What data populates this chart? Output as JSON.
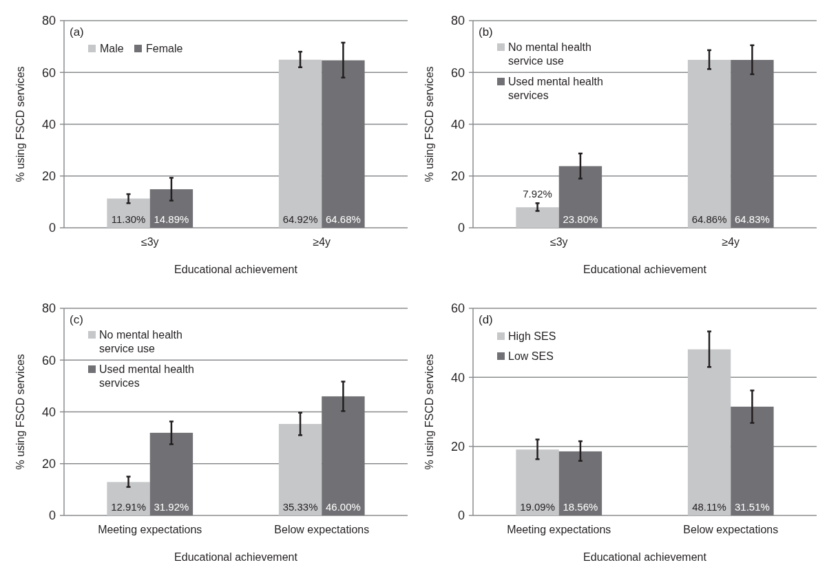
{
  "chart_data": [
    {
      "type": "bar",
      "title": "(a)",
      "xlabel": "Educational achievement",
      "ylabel": "% using FSCD services",
      "categories": [
        "≤3y",
        "≥4y"
      ],
      "ylim": [
        0,
        80
      ],
      "yticks": [
        0,
        20,
        40,
        60,
        80
      ],
      "grid": "y",
      "legend": "top left",
      "series": [
        {
          "name": "Male",
          "color": "#c6c7c9",
          "values": [
            11.3,
            64.92
          ],
          "value_labels": [
            "11.30%",
            "64.92%"
          ],
          "errors": [
            [
              9.5,
              13
            ],
            [
              62,
              68
            ]
          ]
        },
        {
          "name": "Female",
          "color": "#717175",
          "values": [
            14.89,
            64.68
          ],
          "value_labels": [
            "14.89%",
            "64.68%"
          ],
          "errors": [
            [
              10.5,
              19.3
            ],
            [
              58,
              71.5
            ]
          ]
        }
      ]
    },
    {
      "type": "bar",
      "title": "(b)",
      "xlabel": "Educational achievement",
      "ylabel": "% using FSCD services",
      "categories": [
        "≤3y",
        "≥4y"
      ],
      "ylim": [
        0,
        80
      ],
      "yticks": [
        0,
        20,
        40,
        60,
        80
      ],
      "grid": "y",
      "legend": "top left",
      "series": [
        {
          "name": "No mental health service use",
          "color": "#c6c7c9",
          "values": [
            7.92,
            64.86
          ],
          "value_labels": [
            "7.92%",
            "64.86%"
          ],
          "errors": [
            [
              6.5,
              9.5
            ],
            [
              61.3,
              68.6
            ]
          ]
        },
        {
          "name": "Used mental health services",
          "color": "#717175",
          "values": [
            23.8,
            64.83
          ],
          "value_labels": [
            "23.80%",
            "64.83%"
          ],
          "errors": [
            [
              19,
              28.7
            ],
            [
              59.3,
              70.5
            ]
          ]
        }
      ]
    },
    {
      "type": "bar",
      "title": "(c)",
      "xlabel": "Educational achievement",
      "ylabel": "% using FSCD services",
      "categories": [
        "Meeting expectations",
        "Below expectations"
      ],
      "ylim": [
        0,
        80
      ],
      "yticks": [
        0,
        20,
        40,
        60,
        80
      ],
      "grid": "y",
      "legend": "top left",
      "series": [
        {
          "name": "No mental health service use",
          "color": "#c6c7c9",
          "values": [
            12.91,
            35.33
          ],
          "value_labels": [
            "12.91%",
            "35.33%"
          ],
          "errors": [
            [
              11,
              15
            ],
            [
              31,
              39.7
            ]
          ]
        },
        {
          "name": "Used mental health services",
          "color": "#717175",
          "values": [
            31.92,
            46.0
          ],
          "value_labels": [
            "31.92%",
            "46.00%"
          ],
          "errors": [
            [
              27.5,
              36.3
            ],
            [
              40.3,
              51.7
            ]
          ]
        }
      ]
    },
    {
      "type": "bar",
      "title": "(d)",
      "xlabel": "Educational achievement",
      "ylabel": "% using FSCD services",
      "categories": [
        "Meeting expectations",
        "Below expectations"
      ],
      "ylim": [
        0,
        60
      ],
      "yticks": [
        0,
        20,
        40,
        60
      ],
      "grid": "y",
      "legend": "top left",
      "series": [
        {
          "name": "High SES",
          "color": "#c6c7c9",
          "values": [
            19.09,
            48.11
          ],
          "value_labels": [
            "19.09%",
            "48.11%"
          ],
          "errors": [
            [
              16.3,
              22
            ],
            [
              43,
              53.3
            ]
          ]
        },
        {
          "name": "Low SES",
          "color": "#717175",
          "values": [
            18.56,
            31.51
          ],
          "value_labels": [
            "18.56%",
            "31.51%"
          ],
          "errors": [
            [
              15.8,
              21.5
            ],
            [
              26.8,
              36.2
            ]
          ]
        }
      ]
    }
  ]
}
